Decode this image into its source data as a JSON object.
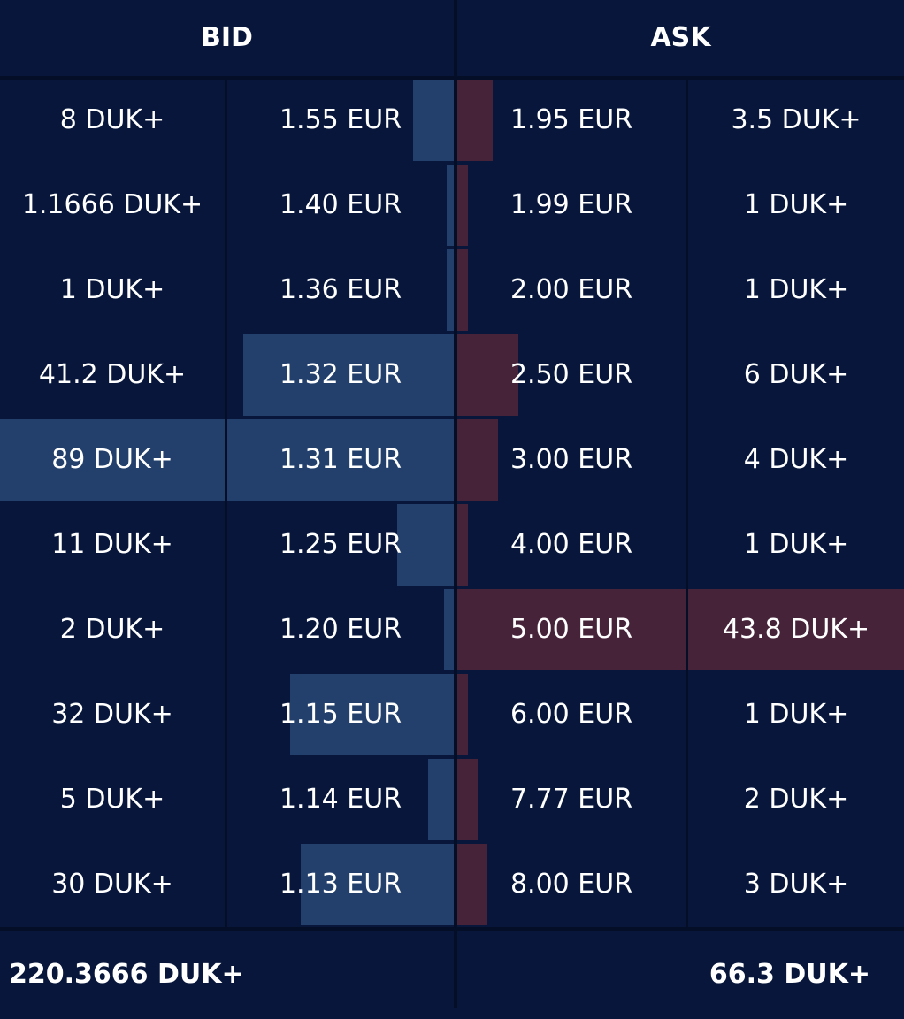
{
  "header": {
    "bid_label": "BID",
    "ask_label": "ASK"
  },
  "colors": {
    "background": "#07163a",
    "bid_bar": "#22406b",
    "ask_bar": "#47233a",
    "divider": "#040e27",
    "text": "#ffffff"
  },
  "bids": [
    {
      "qty": "8 DUK+",
      "price": "1.55 EUR",
      "depth_fraction": 0.09
    },
    {
      "qty": "1.1666 DUK+",
      "price": "1.40 EUR",
      "depth_fraction": 0.013
    },
    {
      "qty": "1 DUK+",
      "price": "1.36 EUR",
      "depth_fraction": 0.011
    },
    {
      "qty": "41.2 DUK+",
      "price": "1.32 EUR",
      "depth_fraction": 0.463
    },
    {
      "qty": "89 DUK+",
      "price": "1.31 EUR",
      "depth_fraction": 1.0
    },
    {
      "qty": "11 DUK+",
      "price": "1.25 EUR",
      "depth_fraction": 0.124
    },
    {
      "qty": "2 DUK+",
      "price": "1.20 EUR",
      "depth_fraction": 0.022
    },
    {
      "qty": "32 DUK+",
      "price": "1.15 EUR",
      "depth_fraction": 0.36
    },
    {
      "qty": "5 DUK+",
      "price": "1.14 EUR",
      "depth_fraction": 0.056
    },
    {
      "qty": "30 DUK+",
      "price": "1.13 EUR",
      "depth_fraction": 0.337
    }
  ],
  "asks": [
    {
      "price": "1.95 EUR",
      "qty": "3.5 DUK+",
      "depth_fraction": 0.08
    },
    {
      "price": "1.99 EUR",
      "qty": "1 DUK+",
      "depth_fraction": 0.023
    },
    {
      "price": "2.00 EUR",
      "qty": "1 DUK+",
      "depth_fraction": 0.023
    },
    {
      "price": "2.50 EUR",
      "qty": "6 DUK+",
      "depth_fraction": 0.137
    },
    {
      "price": "3.00 EUR",
      "qty": "4 DUK+",
      "depth_fraction": 0.091
    },
    {
      "price": "4.00 EUR",
      "qty": "1 DUK+",
      "depth_fraction": 0.023
    },
    {
      "price": "5.00 EUR",
      "qty": "43.8 DUK+",
      "depth_fraction": 1.0
    },
    {
      "price": "6.00 EUR",
      "qty": "1 DUK+",
      "depth_fraction": 0.023
    },
    {
      "price": "7.77 EUR",
      "qty": "2 DUK+",
      "depth_fraction": 0.046
    },
    {
      "price": "8.00 EUR",
      "qty": "3 DUK+",
      "depth_fraction": 0.068
    }
  ],
  "footer": {
    "bid_total": "220.3666 DUK+",
    "ask_total": "66.3 DUK+"
  }
}
